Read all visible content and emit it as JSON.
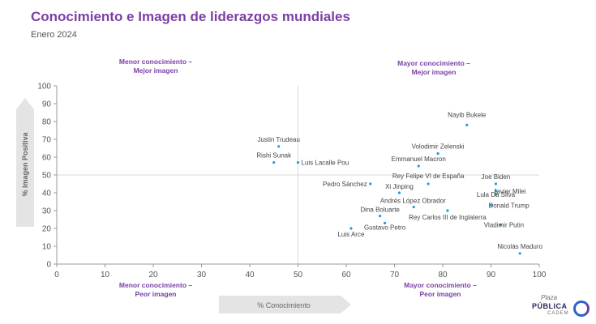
{
  "header": {
    "title": "Conocimiento e Imagen de liderazgos mundiales",
    "subtitle": "Enero 2024"
  },
  "quadrants": {
    "top_left": [
      "Menor conocimiento –",
      "Mejor imagen"
    ],
    "top_right": [
      "Mayor conocimiento –",
      "Mejor imagen"
    ],
    "bottom_left": [
      "Menor conocimiento –",
      "Peor imagen"
    ],
    "bottom_right": [
      "Mayor conocimiento –",
      "Peor imagen"
    ]
  },
  "colors": {
    "accent": "#7b3fa5",
    "point": "#1f9ed8",
    "axis_arrow": "#e4e4e4",
    "gridline": "#d9d9d9"
  },
  "logo": {
    "line1": "Plaza",
    "line2": "PÚBLICA",
    "line3": "CADEM"
  },
  "chart_data": {
    "type": "scatter",
    "xlabel": "% Conocimiento",
    "ylabel": "% Imagen Positiva",
    "xlim": [
      0,
      100
    ],
    "ylim": [
      0,
      100
    ],
    "x_ticks": [
      0,
      10,
      20,
      30,
      40,
      50,
      60,
      70,
      80,
      90,
      100
    ],
    "y_ticks": [
      0,
      10,
      20,
      30,
      40,
      50,
      60,
      70,
      80,
      90,
      100
    ],
    "reference_lines": {
      "x": 50,
      "y": 50
    },
    "grid": false,
    "points": [
      {
        "label": "Nayib Bukele",
        "x": 85,
        "y": 78
      },
      {
        "label": "Volodimir Zelenski",
        "x": 79,
        "y": 62
      },
      {
        "label": "Emmanuel Macron",
        "x": 75,
        "y": 55
      },
      {
        "label": "Justin Trudeau",
        "x": 46,
        "y": 66
      },
      {
        "label": "Rishi Sunak",
        "x": 45,
        "y": 57
      },
      {
        "label": "Luis Lacalle Pou",
        "x": 50,
        "y": 57
      },
      {
        "label": "Rey Felipe VI de España",
        "x": 77,
        "y": 45
      },
      {
        "label": "Pedro Sánchez",
        "x": 65,
        "y": 45
      },
      {
        "label": "Xi Jinping",
        "x": 71,
        "y": 40
      },
      {
        "label": "Joe Biden",
        "x": 91,
        "y": 45
      },
      {
        "label": "Javier Milei",
        "x": 91,
        "y": 41
      },
      {
        "label": "Lula Da Silva",
        "x": 91,
        "y": 39
      },
      {
        "label": "Andrés López Obrador",
        "x": 74,
        "y": 32
      },
      {
        "label": "Donald Trump",
        "x": 90,
        "y": 33
      },
      {
        "label": "Dina Boluarte",
        "x": 67,
        "y": 27
      },
      {
        "label": "Rey Carlos III de Inglaterra",
        "x": 81,
        "y": 30
      },
      {
        "label": "Gustavo Petro",
        "x": 68,
        "y": 23
      },
      {
        "label": "Vladimir Putin",
        "x": 92,
        "y": 22
      },
      {
        "label": "Luis Arce",
        "x": 61,
        "y": 20
      },
      {
        "label": "Nicolás Maduro",
        "x": 96,
        "y": 6
      }
    ]
  }
}
